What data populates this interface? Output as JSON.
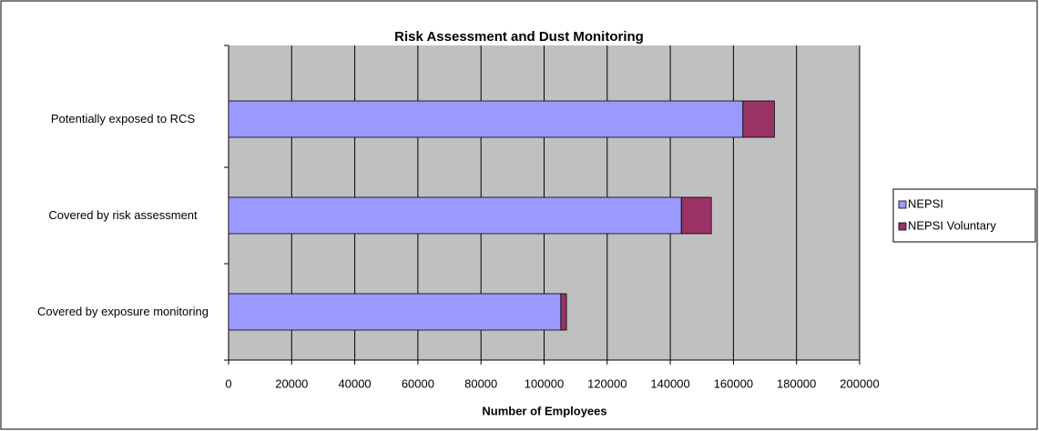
{
  "chart_data": {
    "type": "hbar_stacked",
    "title": "Risk Assessment and Dust Monitoring",
    "xlabel": "Number of Employees",
    "categories": [
      "Potentially exposed to RCS",
      "Covered by risk assessment",
      "Covered by exposure monitoring"
    ],
    "series": [
      {
        "name": "NEPSI",
        "color": "#9999ff",
        "values": [
          163000,
          143500,
          105300
        ]
      },
      {
        "name": "NEPSI Voluntary",
        "color": "#993366",
        "values": [
          10000,
          9500,
          1800
        ]
      }
    ],
    "xlim": [
      0,
      200000
    ],
    "xticks": [
      0,
      20000,
      40000,
      60000,
      80000,
      100000,
      120000,
      140000,
      160000,
      180000,
      200000
    ],
    "grid": true,
    "legend": "right"
  }
}
